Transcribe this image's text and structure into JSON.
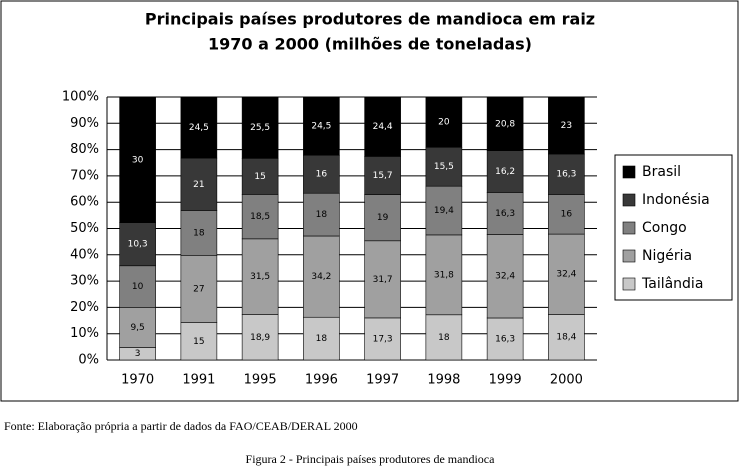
{
  "chart_data": {
    "type": "bar",
    "stacked": "percent",
    "title": "Principais países produtores de mandioca em raiz",
    "subtitle": "1970 a 2000 (milhões de toneladas)",
    "categories": [
      "1970",
      "1991",
      "1995",
      "1996",
      "1997",
      "1998",
      "1999",
      "2000"
    ],
    "series": [
      {
        "name": "Tailândia",
        "color": "#c8c8c8",
        "values": [
          3,
          15,
          18.9,
          18,
          17.3,
          18,
          16.3,
          18.4
        ],
        "value_labels": [
          "3",
          "15",
          "18,9",
          "18",
          "17,3",
          "18",
          "16,3",
          "18,4"
        ]
      },
      {
        "name": "Nigéria",
        "color": "#a0a0a0",
        "values": [
          9.5,
          27,
          31.5,
          34.2,
          31.7,
          31.8,
          32.4,
          32.4
        ],
        "value_labels": [
          "9,5",
          "27",
          "31,5",
          "34,2",
          "31,7",
          "31,8",
          "32,4",
          "32,4"
        ]
      },
      {
        "name": "Congo",
        "color": "#808080",
        "values": [
          10,
          18,
          18.5,
          18,
          19,
          19.4,
          16.3,
          16
        ],
        "value_labels": [
          "10",
          "18",
          "18,5",
          "18",
          "19",
          "19,4",
          "16,3",
          "16"
        ]
      },
      {
        "name": "Indonésia",
        "color": "#383838",
        "values": [
          10.3,
          21,
          15,
          16,
          15.7,
          15.5,
          16.2,
          16.3
        ],
        "value_labels": [
          "10,3",
          "21",
          "15",
          "16",
          "15,7",
          "15,5",
          "16,2",
          "16,3"
        ]
      },
      {
        "name": "Brasil",
        "color": "#000000",
        "values": [
          30,
          24.5,
          25.5,
          24.5,
          24.4,
          20,
          20.8,
          23
        ],
        "value_labels": [
          "30",
          "24,5",
          "25,5",
          "24,5",
          "24,4",
          "20",
          "20,8",
          "23"
        ]
      }
    ],
    "ylim": [
      0,
      100
    ],
    "yticks": [
      {
        "value": 0,
        "label": "0%"
      },
      {
        "value": 10,
        "label": "10%"
      },
      {
        "value": 20,
        "label": "20%"
      },
      {
        "value": 30,
        "label": "30%"
      },
      {
        "value": 40,
        "label": "40%"
      },
      {
        "value": 50,
        "label": "50%"
      },
      {
        "value": 60,
        "label": "60%"
      },
      {
        "value": 70,
        "label": "70%"
      },
      {
        "value": 80,
        "label": "80%"
      },
      {
        "value": 90,
        "label": "90%"
      },
      {
        "value": 100,
        "label": "100%"
      }
    ],
    "grid": true,
    "legend": "right"
  },
  "source": "Fonte: Elaboração própria a partir de  dados da FAO/CEAB/DERAL 2000",
  "caption": "Figura 2 - Principais países produtores de mandioca"
}
